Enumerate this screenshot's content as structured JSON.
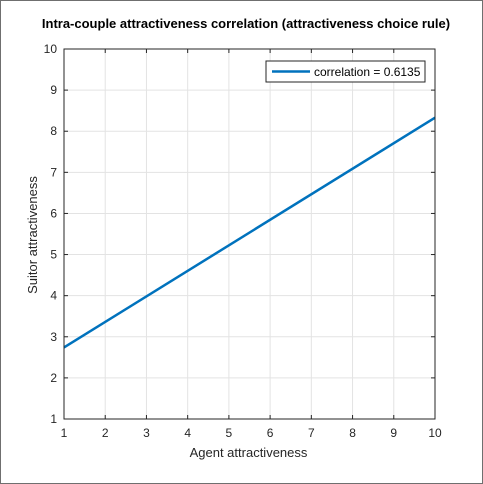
{
  "chart_data": {
    "type": "line",
    "title": "Intra-couple attractiveness correlation (attractiveness choice rule)",
    "xlabel": "Agent attractiveness",
    "ylabel": "Suitor attractiveness",
    "xlim": [
      1,
      10
    ],
    "ylim": [
      1,
      10
    ],
    "xticks": [
      1,
      2,
      3,
      4,
      5,
      6,
      7,
      8,
      9,
      10
    ],
    "yticks": [
      1,
      2,
      3,
      4,
      5,
      6,
      7,
      8,
      9,
      10
    ],
    "grid": true,
    "legend_position": "top-right",
    "series": [
      {
        "name": "correlation = 0.6135",
        "color": "#0072BD",
        "x": [
          1,
          10
        ],
        "y": [
          2.74,
          8.33
        ]
      }
    ]
  }
}
